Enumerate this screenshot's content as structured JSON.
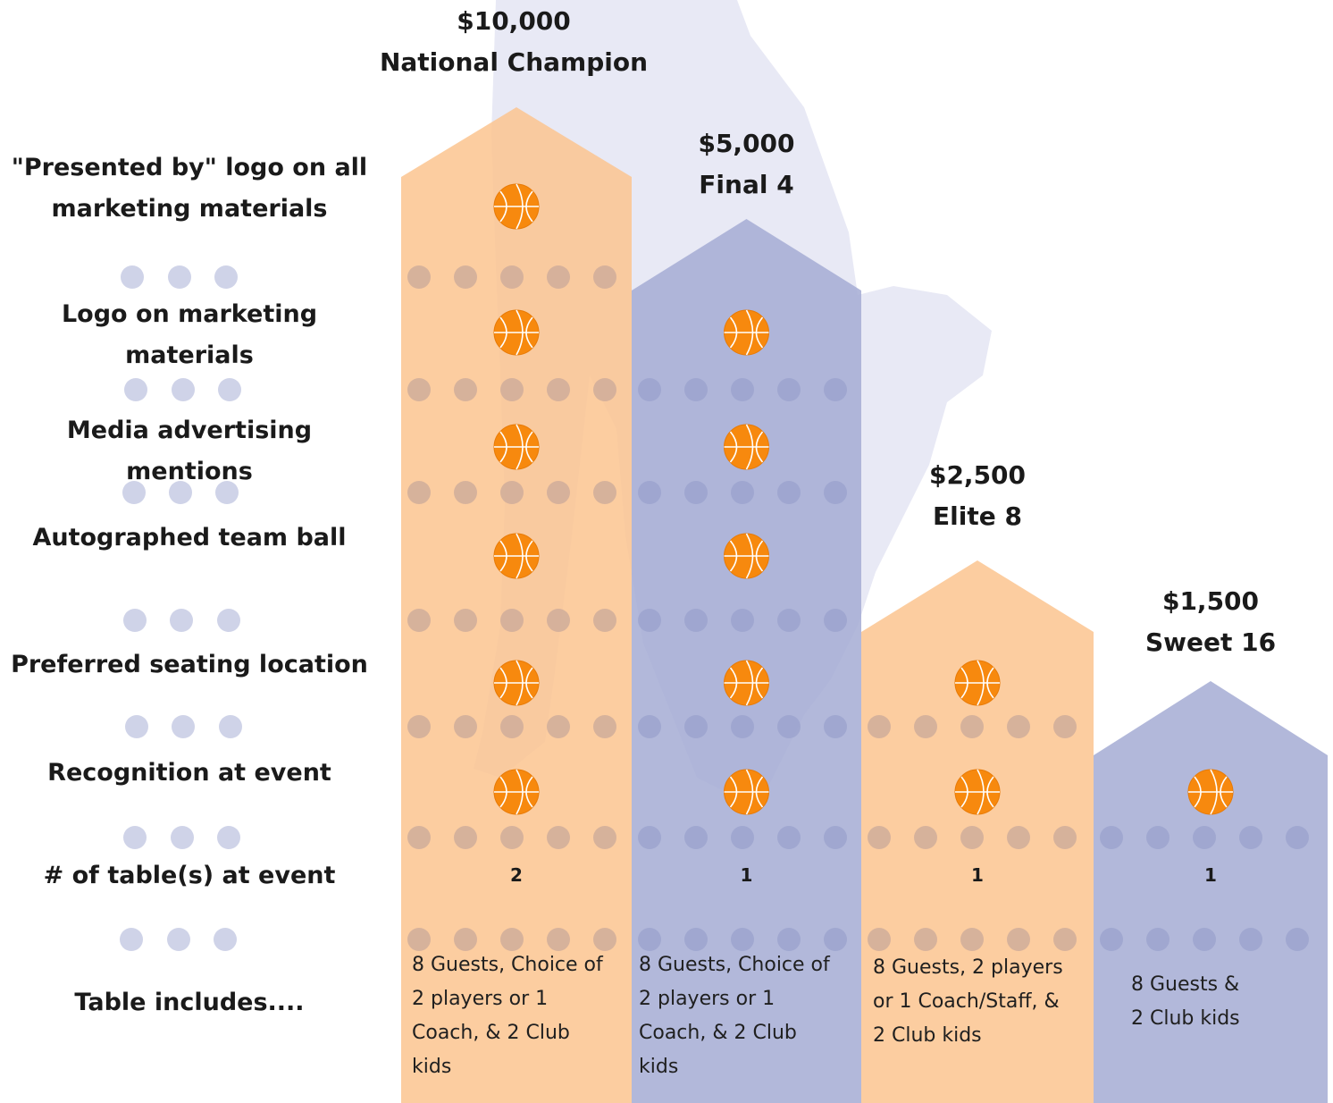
{
  "tiers": [
    {
      "price": "$10,000",
      "name": "National Champion",
      "color": "#fcc48f",
      "table_count": "2",
      "includes": [
        "8 Guests, Choice of",
        "2 players or 1",
        "Coach, & 2 Club",
        "kids"
      ]
    },
    {
      "price": "$5,000",
      "name": "Final 4",
      "color": "#a5acd4",
      "table_count": "1",
      "includes": [
        "8 Guests, Choice of",
        "2 players or 1",
        "Coach, & 2 Club",
        "kids"
      ]
    },
    {
      "price": "$2,500",
      "name": "Elite 8",
      "color": "#fcc48f",
      "table_count": "1",
      "includes": [
        "8 Guests, 2 players",
        "or 1 Coach/Staff, &",
        "2 Club kids"
      ]
    },
    {
      "price": "$1,500",
      "name": "Sweet 16",
      "color": "#a5acd4",
      "table_count": "1",
      "includes": [
        "8 Guests &",
        "2 Club kids"
      ]
    }
  ],
  "benefits": [
    {
      "label_lines": [
        "\"Presented by\" logo on all",
        "marketing materials"
      ],
      "tiers_included": [
        true,
        false,
        false,
        false
      ]
    },
    {
      "label_lines": [
        "Logo on marketing materials"
      ],
      "tiers_included": [
        true,
        true,
        false,
        false
      ]
    },
    {
      "label_lines": [
        "Media advertising mentions"
      ],
      "tiers_included": [
        true,
        true,
        false,
        false
      ]
    },
    {
      "label_lines": [
        "Autographed team ball"
      ],
      "tiers_included": [
        true,
        true,
        false,
        false
      ]
    },
    {
      "label_lines": [
        "Preferred seating location"
      ],
      "tiers_included": [
        true,
        true,
        true,
        false
      ]
    },
    {
      "label_lines": [
        "Recognition at event"
      ],
      "tiers_included": [
        true,
        true,
        true,
        true
      ]
    },
    {
      "label_lines": [
        "# of table(s) at event"
      ],
      "tiers_included": [
        false,
        false,
        false,
        false
      ]
    },
    {
      "label_lines": [
        "Table includes...."
      ],
      "tiers_included": [
        false,
        false,
        false,
        false
      ]
    }
  ],
  "icons": {
    "included_marker": "basketball-icon",
    "separator": "dot-separator",
    "background": "player-silhouette"
  },
  "colors": {
    "orange_bar": "#fcc48f",
    "blue_bar": "#a5acd4",
    "ball": "#f7890e",
    "dot": "#cfd3e8",
    "silhouette": "#e8e9f5"
  }
}
